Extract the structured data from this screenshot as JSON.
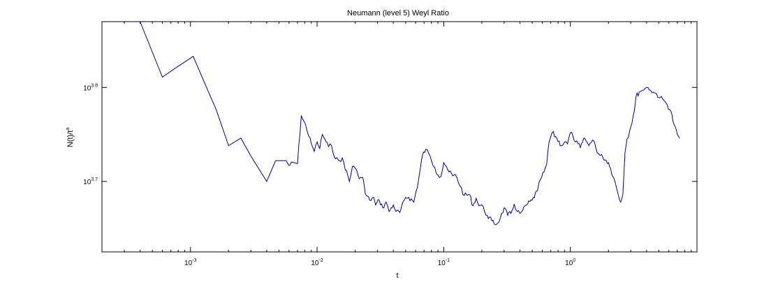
{
  "chart_data": {
    "type": "line",
    "title": "Neumann (level 5) Weyl Ratio",
    "xlabel": "t",
    "ylabel": "N(t)/t",
    "ylabel_superscript": "a",
    "x_scale": "log",
    "y_scale": "log",
    "xlim": [
      0.0002,
      10
    ],
    "ylim_exp": [
      3.625,
      3.87
    ],
    "grid": false,
    "x_ticks": [
      {
        "base": "10",
        "exp": "-3",
        "value": 0.001
      },
      {
        "base": "10",
        "exp": "-2",
        "value": 0.01
      },
      {
        "base": "10",
        "exp": "-1",
        "value": 0.1
      },
      {
        "base": "10",
        "exp": "0",
        "value": 1
      }
    ],
    "y_ticks": [
      {
        "base": "10",
        "exp": "3.8",
        "value_exp": 3.8
      },
      {
        "base": "10",
        "exp": "3.7",
        "value_exp": 3.7
      }
    ],
    "line_color": "#00008b",
    "series": [
      {
        "x": [
          0.0004,
          0.0006,
          0.00075,
          0.00105,
          0.0016,
          0.002,
          0.0025,
          0.003,
          0.004,
          0.0047,
          0.0057,
          0.006,
          0.0065,
          0.007,
          0.0075,
          0.0082,
          0.009,
          0.0095,
          0.01,
          0.0105,
          0.011,
          0.0115,
          0.0123,
          0.013,
          0.014,
          0.015,
          0.0158,
          0.0167,
          0.017,
          0.018,
          0.019,
          0.02,
          0.021,
          0.022,
          0.023,
          0.024,
          0.026,
          0.028,
          0.029,
          0.031,
          0.033,
          0.035,
          0.037,
          0.04,
          0.042,
          0.045,
          0.05,
          0.053,
          0.058,
          0.063,
          0.068,
          0.072,
          0.076,
          0.08,
          0.085,
          0.09,
          0.095,
          0.1,
          0.105,
          0.11,
          0.118,
          0.125,
          0.135,
          0.145,
          0.16,
          0.17,
          0.18,
          0.19,
          0.2,
          0.21,
          0.22,
          0.24,
          0.26,
          0.28,
          0.3,
          0.32,
          0.34,
          0.36,
          0.38,
          0.4,
          0.42,
          0.45,
          0.5,
          0.55,
          0.58,
          0.62,
          0.65,
          0.68,
          0.72,
          0.78,
          0.85,
          0.9,
          0.95,
          1.0,
          1.05,
          1.1,
          1.15,
          1.2,
          1.3,
          1.4,
          1.5,
          1.55,
          1.6,
          1.7,
          1.8,
          2.0,
          2.2,
          2.5,
          2.6,
          2.7,
          2.8,
          3.0,
          3.2,
          3.3,
          3.5,
          3.7,
          3.9,
          4.1,
          4.3,
          4.5,
          4.8,
          5.1,
          5.5,
          5.8,
          6.2,
          6.6,
          7.0,
          7.3
        ],
        "y_exp": [
          3.87,
          3.811,
          3.82,
          3.833,
          3.776,
          3.738,
          3.746,
          3.727,
          3.7,
          3.722,
          3.722,
          3.717,
          3.72,
          3.719,
          3.77,
          3.758,
          3.74,
          3.732,
          3.742,
          3.735,
          3.75,
          3.745,
          3.737,
          3.738,
          3.724,
          3.722,
          3.725,
          3.712,
          3.712,
          3.7,
          3.716,
          3.714,
          3.707,
          3.704,
          3.704,
          3.687,
          3.68,
          3.683,
          3.675,
          3.68,
          3.672,
          3.678,
          3.668,
          3.675,
          3.668,
          3.667,
          3.683,
          3.683,
          3.678,
          3.7,
          3.728,
          3.734,
          3.73,
          3.722,
          3.715,
          3.707,
          3.705,
          3.72,
          3.716,
          3.71,
          3.706,
          3.706,
          3.695,
          3.685,
          3.686,
          3.674,
          3.682,
          3.674,
          3.675,
          3.668,
          3.664,
          3.658,
          3.654,
          3.661,
          3.672,
          3.664,
          3.666,
          3.676,
          3.668,
          3.666,
          3.669,
          3.675,
          3.68,
          3.69,
          3.702,
          3.71,
          3.718,
          3.742,
          3.752,
          3.746,
          3.738,
          3.742,
          3.74,
          3.752,
          3.748,
          3.742,
          3.74,
          3.736,
          3.746,
          3.738,
          3.744,
          3.742,
          3.734,
          3.728,
          3.726,
          3.72,
          3.704,
          3.678,
          3.686,
          3.73,
          3.745,
          3.758,
          3.775,
          3.79,
          3.795,
          3.797,
          3.799,
          3.8,
          3.797,
          3.795,
          3.793,
          3.789,
          3.786,
          3.782,
          3.775,
          3.76,
          3.75,
          3.746
        ]
      }
    ]
  }
}
